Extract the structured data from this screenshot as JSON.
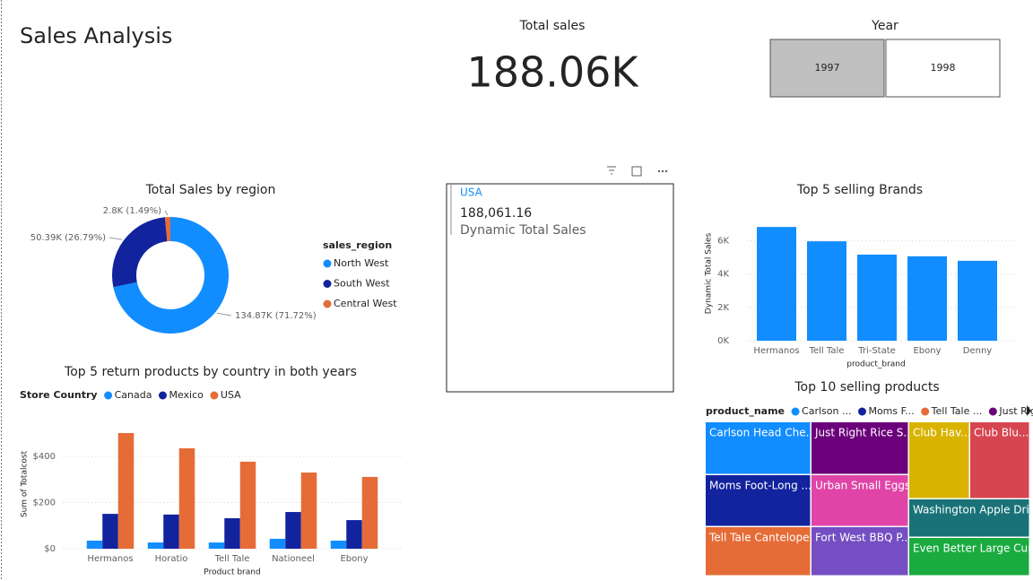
{
  "title": "Sales Analysis",
  "card": {
    "label": "Total sales",
    "value": "188.06K"
  },
  "slicer": {
    "title": "Year",
    "options": [
      "1997",
      "1998"
    ],
    "selected": 0
  },
  "multirow_card": {
    "country": "USA",
    "value": "188,061.16",
    "label": "Dynamic Total Sales"
  },
  "chart_data": [
    {
      "type": "donut",
      "title": "Total Sales by region",
      "legend_title": "sales_region",
      "categories": [
        "North West",
        "South West",
        "Central West"
      ],
      "values": [
        134870,
        50390,
        2800
      ],
      "value_labels": [
        "134.87K (71.72%)",
        "50.39K (26.79%)",
        "2.8K (1.49%)"
      ],
      "colors": [
        "#118DFF",
        "#12239E",
        "#E66C37"
      ]
    },
    {
      "type": "bar",
      "title": "Top 5 selling Brands",
      "x_label": "product_brand",
      "y_label": "Dynamic Total Sales",
      "categories": [
        "Hermanos",
        "Tell Tale",
        "Tri-State",
        "Ebony",
        "Denny"
      ],
      "values": [
        6830,
        5970,
        5170,
        5070,
        4800
      ],
      "color": "#118DFF",
      "ylim": [
        0,
        7000
      ],
      "yticks": [
        {
          "value": 0,
          "label": "0K"
        },
        {
          "value": 2000,
          "label": "2K"
        },
        {
          "value": 4000,
          "label": "4K"
        },
        {
          "value": 6000,
          "label": "6K"
        }
      ],
      "grid": true
    },
    {
      "type": "grouped_bar",
      "title": "Top 5 return products by country in both years",
      "legend_title": "Store Country",
      "x_label": "Product brand",
      "y_label": "Sum of Totalcost",
      "categories": [
        "Hermanos",
        "Horatio",
        "Tell Tale",
        "Nationeel",
        "Ebony"
      ],
      "series": [
        {
          "name": "Canada",
          "color": "#118DFF",
          "values": [
            35,
            27,
            27,
            43,
            35
          ]
        },
        {
          "name": "Mexico",
          "color": "#12239E",
          "values": [
            151,
            148,
            132,
            159,
            124
          ]
        },
        {
          "name": "USA",
          "color": "#E66C37",
          "values": [
            501,
            435,
            377,
            330,
            311
          ]
        }
      ],
      "ylim": [
        0,
        540
      ],
      "yticks": [
        {
          "value": 0,
          "label": "$0"
        },
        {
          "value": 200,
          "label": "$200"
        },
        {
          "value": 400,
          "label": "$400"
        }
      ],
      "grid": true
    },
    {
      "type": "treemap",
      "title": "Top 10 selling products",
      "legend_title": "product_name",
      "legend": [
        {
          "label": "Carlson ...",
          "color": "#118DFF"
        },
        {
          "label": "Moms F...",
          "color": "#12239E"
        },
        {
          "label": "Tell Tale ...",
          "color": "#E66C37"
        },
        {
          "label": "Just Rig...",
          "color": "#6B007B"
        }
      ],
      "items": [
        {
          "label": "Carlson Head Che...",
          "value": 696,
          "color": "#118DFF"
        },
        {
          "label": "Moms Foot-Long ...",
          "value": 684,
          "color": "#12239E"
        },
        {
          "label": "Tell Tale Cantelope",
          "value": 649,
          "color": "#E66C37"
        },
        {
          "label": "Just Right Rice S...",
          "value": 643,
          "color": "#6B007B"
        },
        {
          "label": "Urban Small Eggs",
          "value": 632,
          "color": "#E044A7"
        },
        {
          "label": "Fort West BBQ P...",
          "value": 600,
          "color": "#744EC2"
        },
        {
          "label": "Club Hav...",
          "value": 585,
          "color": "#D9B300"
        },
        {
          "label": "Club Blu...",
          "value": 576,
          "color": "#D64550"
        },
        {
          "label": "Washington Apple Dri...",
          "value": 581,
          "color": "#197278"
        },
        {
          "label": "Even Better Large Cur...",
          "value": 581,
          "color": "#1AAB40"
        }
      ]
    }
  ]
}
